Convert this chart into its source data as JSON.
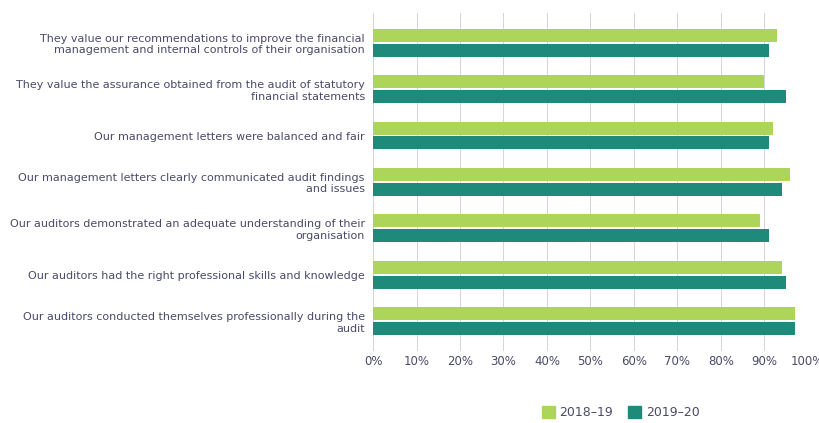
{
  "categories": [
    "They value our recommendations to improve the financial\nmanagement and internal controls of their organisation",
    "They value the assurance obtained from the audit of statutory\nfinancial statements",
    "Our management letters were balanced and fair",
    "Our management letters clearly communicated audit findings\nand issues",
    "Our auditors demonstrated an adequate understanding of their\norganisation",
    "Our auditors had the right professional skills and knowledge",
    "Our auditors conducted themselves professionally during the\naudit"
  ],
  "values_2018_19": [
    93,
    90,
    92,
    96,
    89,
    94,
    97
  ],
  "values_2019_20": [
    91,
    95,
    91,
    94,
    91,
    95,
    97
  ],
  "color_2018_19": "#acd55a",
  "color_2019_20": "#1e8a7a",
  "legend_labels": [
    "2018–19",
    "2019–20"
  ],
  "xlim": [
    0,
    100
  ],
  "xtick_vals": [
    0,
    10,
    20,
    30,
    40,
    50,
    60,
    70,
    80,
    90,
    100
  ],
  "xtick_labels": [
    "0%",
    "10%",
    "20%",
    "30%",
    "40%",
    "50%",
    "60%",
    "70%",
    "80%",
    "90%",
    "100%"
  ],
  "background_color": "#ffffff",
  "grid_color": "#d5d5d5",
  "text_color": "#4a4a6a",
  "label_fontsize": 8.0,
  "tick_fontsize": 8.5,
  "legend_fontsize": 9,
  "bar_height": 0.28,
  "bar_gap": 0.04
}
